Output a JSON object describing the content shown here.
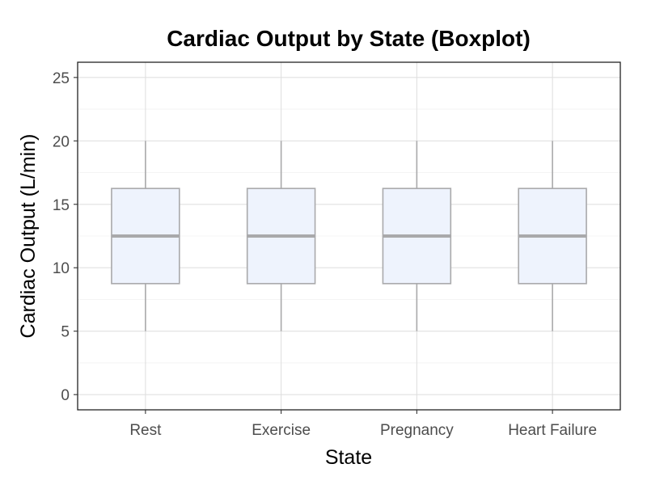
{
  "chart_data": {
    "type": "boxplot",
    "title": "Cardiac Output by State (Boxplot)",
    "xlabel": "State",
    "ylabel": "Cardiac Output (L/min)",
    "categories": [
      "Rest",
      "Exercise",
      "Pregnancy",
      "Heart Failure"
    ],
    "boxes": [
      {
        "category": "Rest",
        "min": 5,
        "q1": 8.75,
        "median": 12.5,
        "q3": 16.25,
        "max": 20
      },
      {
        "category": "Exercise",
        "min": 5,
        "q1": 8.75,
        "median": 12.5,
        "q3": 16.25,
        "max": 20
      },
      {
        "category": "Pregnancy",
        "min": 5,
        "q1": 8.75,
        "median": 12.5,
        "q3": 16.25,
        "max": 20
      },
      {
        "category": "Heart Failure",
        "min": 5,
        "q1": 8.75,
        "median": 12.5,
        "q3": 16.25,
        "max": 20
      }
    ],
    "ylim": [
      -1.2,
      26.2
    ],
    "yticks": [
      0,
      5,
      10,
      15,
      20,
      25
    ],
    "grid": true,
    "colors": {
      "box_fill": "#eef3fd",
      "box_stroke": "#a9a9ab",
      "median": "#a9a9ab",
      "whisker": "#a9a9ab",
      "grid": "#e0e0e0",
      "panel_border": "#222222"
    }
  }
}
